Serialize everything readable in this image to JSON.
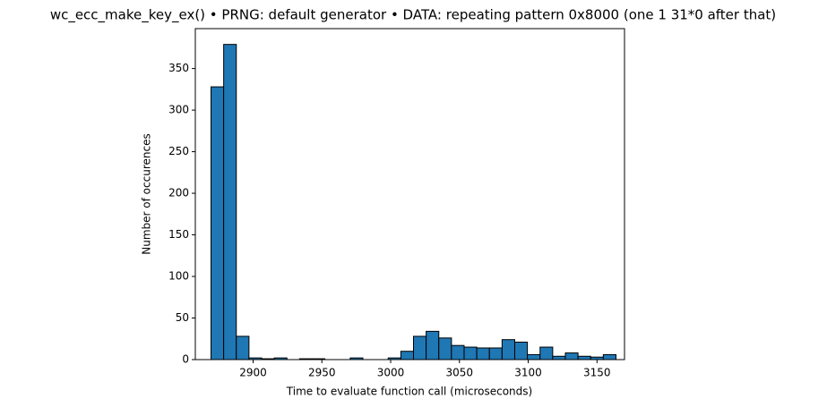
{
  "chart_data": {
    "type": "histogram",
    "title": "wc_ecc_make_key_ex() • PRNG: default generator • DATA: repeating pattern 0x8000 (one 1 31*0 after that)",
    "x_label": "Time to evaluate function call (microseconds)",
    "y_label": "Number of occurences",
    "bins": [
      2869.4,
      2878.6,
      2887.8,
      2897.0,
      2906.2,
      2915.4,
      2924.6,
      2933.8,
      2943.0,
      2952.2,
      2961.4,
      2970.6,
      2979.8,
      2989.0,
      2998.2,
      3007.4,
      3016.6,
      3025.8,
      3035.0,
      3044.2,
      3053.4,
      3062.6,
      3071.8,
      3081.0,
      3090.2,
      3099.4,
      3108.6,
      3117.8,
      3127.0,
      3136.2,
      3145.4,
      3154.6,
      3163.8
    ],
    "values": [
      328,
      379,
      28,
      2,
      1,
      2,
      0,
      1,
      1,
      0,
      0,
      2,
      0,
      0,
      2,
      10,
      28,
      34,
      26,
      17,
      15,
      14,
      14,
      24,
      21,
      6,
      15,
      4,
      8,
      4,
      3,
      6
    ],
    "color": "#1f77b4",
    "edgecolor": "#000000",
    "xlim": [
      2858,
      3170
    ],
    "ylim": [
      0,
      398
    ],
    "xticks": [
      2900,
      2950,
      3000,
      3050,
      3100,
      3150
    ],
    "yticks": [
      0,
      50,
      100,
      150,
      200,
      250,
      300,
      350
    ]
  }
}
